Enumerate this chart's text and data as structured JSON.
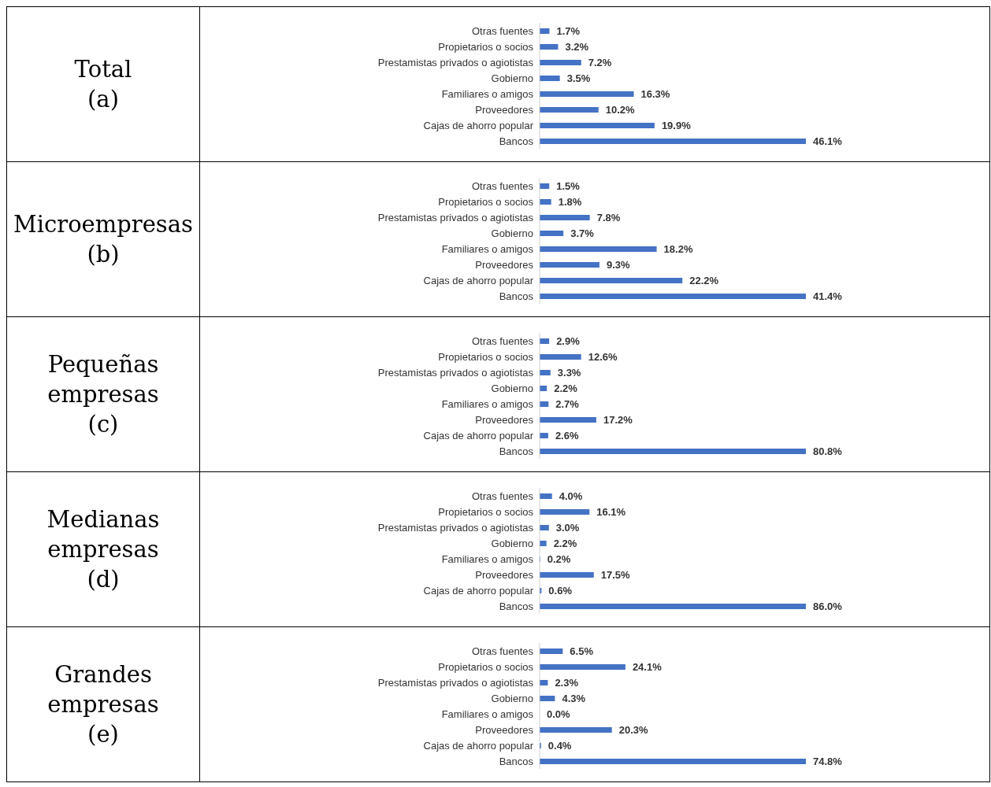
{
  "chart_data": [
    {
      "type": "bar",
      "orientation": "horizontal",
      "ylabel": "Total (a)",
      "categories": [
        "Otras fuentes",
        "Propietarios o socios",
        "Prestamistas privados o agiotistas",
        "Gobierno",
        "Familiares o amigos",
        "Proveedores",
        "Cajas de ahorro popular",
        "Bancos"
      ],
      "values": [
        1.7,
        3.2,
        7.2,
        3.5,
        16.3,
        10.2,
        19.9,
        46.1
      ],
      "value_labels": [
        "1.7%",
        "3.2%",
        "7.2%",
        "3.5%",
        "16.3%",
        "10.2%",
        "19.9%",
        "46.1%"
      ],
      "color": "#4472c4"
    },
    {
      "type": "bar",
      "orientation": "horizontal",
      "ylabel": "Microempresas (b)",
      "categories": [
        "Otras fuentes",
        "Propietarios o socios",
        "Prestamistas privados o agiotistas",
        "Gobierno",
        "Familiares o amigos",
        "Proveedores",
        "Cajas de ahorro popular",
        "Bancos"
      ],
      "values": [
        1.5,
        1.8,
        7.8,
        3.7,
        18.2,
        9.3,
        22.2,
        41.4
      ],
      "value_labels": [
        "1.5%",
        "1.8%",
        "7.8%",
        "3.7%",
        "18.2%",
        "9.3%",
        "22.2%",
        "41.4%"
      ],
      "color": "#4472c4"
    },
    {
      "type": "bar",
      "orientation": "horizontal",
      "ylabel": "Pequeñas empresas (c)",
      "categories": [
        "Otras fuentes",
        "Propietarios o socios",
        "Prestamistas privados o agiotistas",
        "Gobierno",
        "Familiares o amigos",
        "Proveedores",
        "Cajas de ahorro popular",
        "Bancos"
      ],
      "values": [
        2.9,
        12.6,
        3.3,
        2.2,
        2.7,
        17.2,
        2.6,
        80.8
      ],
      "value_labels": [
        "2.9%",
        "12.6%",
        "3.3%",
        "2.2%",
        "2.7%",
        "17.2%",
        "2.6%",
        "80.8%"
      ],
      "color": "#4472c4"
    },
    {
      "type": "bar",
      "orientation": "horizontal",
      "ylabel": "Medianas empresas (d)",
      "categories": [
        "Otras fuentes",
        "Propietarios o socios",
        "Prestamistas privados o agiotistas",
        "Gobierno",
        "Familiares o amigos",
        "Proveedores",
        "Cajas de ahorro popular",
        "Bancos"
      ],
      "values": [
        4.0,
        16.1,
        3.0,
        2.2,
        0.2,
        17.5,
        0.6,
        86.0
      ],
      "value_labels": [
        "4.0%",
        "16.1%",
        "3.0%",
        "2.2%",
        "0.2%",
        "17.5%",
        "0.6%",
        "86.0%"
      ],
      "color": "#4472c4"
    },
    {
      "type": "bar",
      "orientation": "horizontal",
      "ylabel": "Grandes empresas (e)",
      "categories": [
        "Otras fuentes",
        "Propietarios o socios",
        "Prestamistas privados o agiotistas",
        "Gobierno",
        "Familiares o amigos",
        "Proveedores",
        "Cajas de ahorro popular",
        "Bancos"
      ],
      "values": [
        6.5,
        24.1,
        2.3,
        4.3,
        0.0,
        20.3,
        0.4,
        74.8
      ],
      "value_labels": [
        "6.5%",
        "24.1%",
        "2.3%",
        "4.3%",
        "0.0%",
        "20.3%",
        "0.4%",
        "74.8%"
      ],
      "color": "#4472c4"
    }
  ]
}
